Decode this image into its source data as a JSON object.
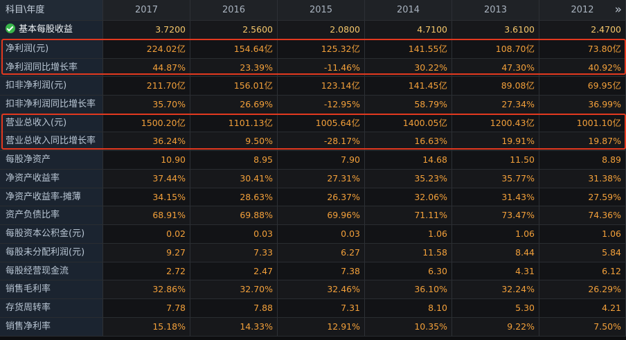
{
  "table": {
    "header_label": "科目\\年度",
    "years": [
      "2017",
      "2016",
      "2015",
      "2014",
      "2013",
      "2012"
    ],
    "more_icon": "»",
    "rows": [
      {
        "label": "基本每股收益",
        "values": [
          "3.7200",
          "2.5600",
          "2.0800",
          "4.7100",
          "3.6100",
          "2.4700"
        ],
        "icon": "check-circle-icon"
      },
      {
        "label": "净利润(元)",
        "values": [
          "224.02亿",
          "154.64亿",
          "125.32亿",
          "141.55亿",
          "108.70亿",
          "73.80亿"
        ]
      },
      {
        "label": "净利润同比增长率",
        "values": [
          "44.87%",
          "23.39%",
          "-11.46%",
          "30.22%",
          "47.30%",
          "40.92%"
        ]
      },
      {
        "label": "扣非净利润(元)",
        "values": [
          "211.70亿",
          "156.01亿",
          "123.14亿",
          "141.45亿",
          "89.08亿",
          "69.95亿"
        ]
      },
      {
        "label": "扣非净利润同比增长率",
        "values": [
          "35.70%",
          "26.69%",
          "-12.95%",
          "58.79%",
          "27.34%",
          "36.99%"
        ]
      },
      {
        "label": "营业总收入(元)",
        "values": [
          "1500.20亿",
          "1101.13亿",
          "1005.64亿",
          "1400.05亿",
          "1200.43亿",
          "1001.10亿"
        ]
      },
      {
        "label": "营业总收入同比增长率",
        "values": [
          "36.24%",
          "9.50%",
          "-28.17%",
          "16.63%",
          "19.91%",
          "19.87%"
        ]
      },
      {
        "label": "每股净资产",
        "values": [
          "10.90",
          "8.95",
          "7.90",
          "14.68",
          "11.50",
          "8.89"
        ]
      },
      {
        "label": "净资产收益率",
        "values": [
          "37.44%",
          "30.41%",
          "27.31%",
          "35.23%",
          "35.77%",
          "31.38%"
        ]
      },
      {
        "label": "净资产收益率-摊薄",
        "values": [
          "34.15%",
          "28.63%",
          "26.37%",
          "32.06%",
          "31.43%",
          "27.59%"
        ]
      },
      {
        "label": "资产负债比率",
        "values": [
          "68.91%",
          "69.88%",
          "69.96%",
          "71.11%",
          "73.47%",
          "74.36%"
        ]
      },
      {
        "label": "每股资本公积金(元)",
        "values": [
          "0.02",
          "0.03",
          "0.03",
          "1.06",
          "1.06",
          "1.06"
        ]
      },
      {
        "label": "每股未分配利润(元)",
        "values": [
          "9.27",
          "7.33",
          "6.27",
          "11.58",
          "8.44",
          "5.84"
        ]
      },
      {
        "label": "每股经营现金流",
        "values": [
          "2.72",
          "2.47",
          "7.38",
          "6.30",
          "4.31",
          "6.12"
        ]
      },
      {
        "label": "销售毛利率",
        "values": [
          "32.86%",
          "32.70%",
          "32.46%",
          "36.10%",
          "32.24%",
          "26.29%"
        ]
      },
      {
        "label": "存货周转率",
        "values": [
          "7.78",
          "7.88",
          "7.31",
          "8.10",
          "5.30",
          "4.21"
        ]
      },
      {
        "label": "销售净利率",
        "values": [
          "15.18%",
          "14.33%",
          "12.91%",
          "10.35%",
          "9.22%",
          "7.50%"
        ]
      }
    ]
  },
  "colors": {
    "value_text": "#f3a03a",
    "highlight_box": "#e3391f",
    "check_icon": "#39b54a"
  }
}
